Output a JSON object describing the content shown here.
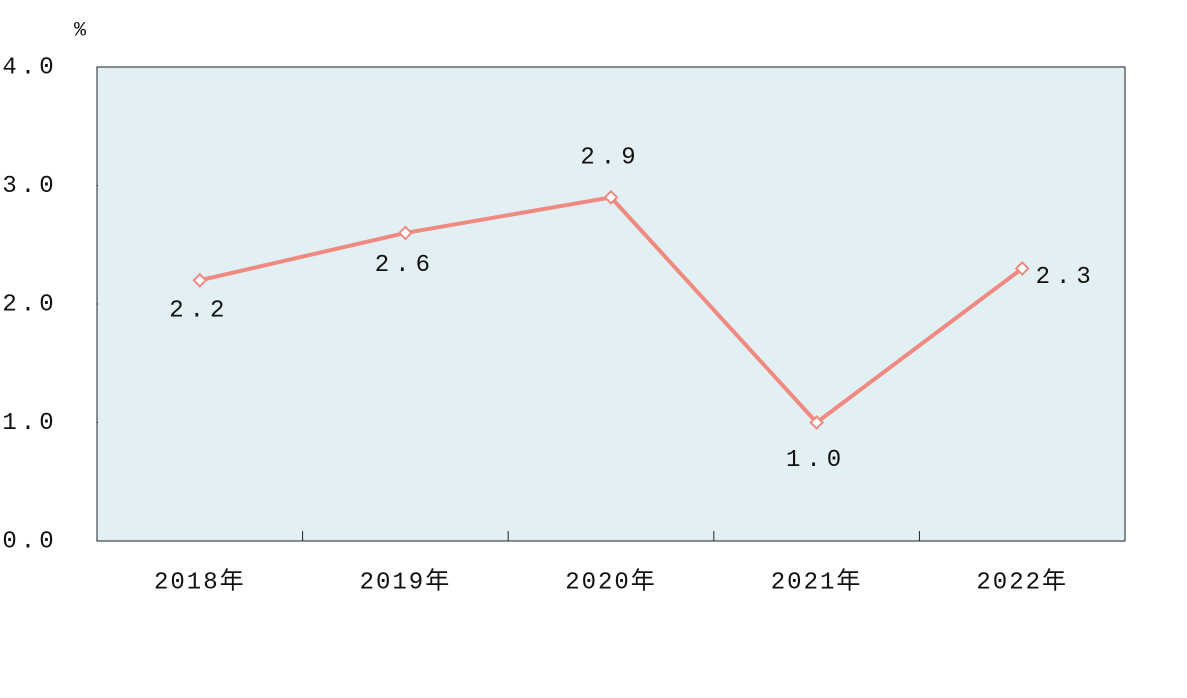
{
  "chart_data": {
    "type": "line",
    "y_label": "%",
    "categories": [
      "2018年",
      "2019年",
      "2020年",
      "2021年",
      "2022年"
    ],
    "values": [
      2.2,
      2.6,
      2.9,
      1.0,
      2.3
    ],
    "value_labels": [
      "2.2",
      "2.6",
      "2.9",
      "1.0",
      "2.3"
    ],
    "color": "#f08a80",
    "ylim": [
      0,
      4
    ],
    "yticks": [
      {
        "value": 0,
        "label": "0.0"
      },
      {
        "value": 1,
        "label": "1.0"
      },
      {
        "value": 2,
        "label": "2.0"
      },
      {
        "value": 3,
        "label": "3.0"
      },
      {
        "value": 4,
        "label": "4.0"
      }
    ]
  }
}
